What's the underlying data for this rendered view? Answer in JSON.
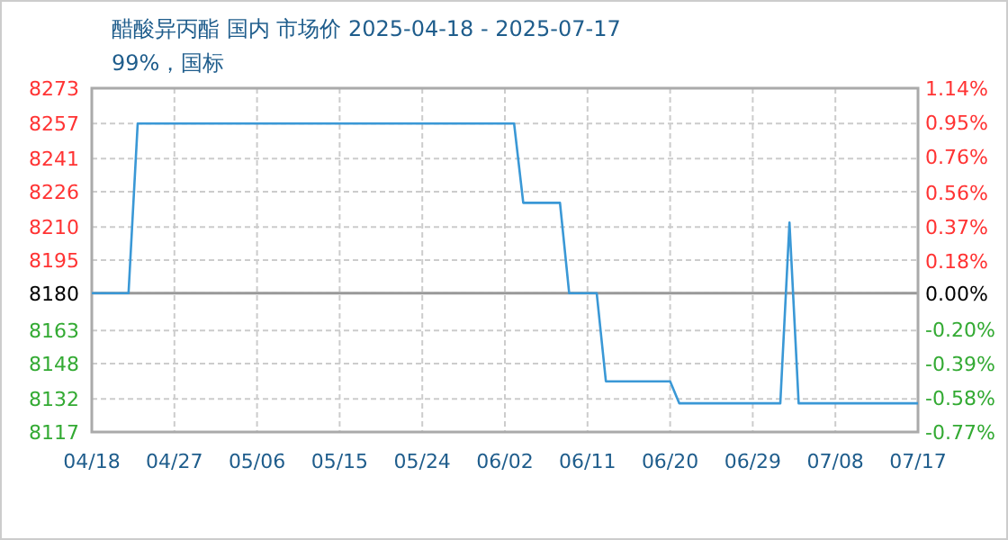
{
  "chart_data": {
    "type": "line",
    "title": "醋酸异丙酯 国内 市场价 2025-04-18 - 2025-07-17",
    "subtitle": "99%，国标",
    "x": [
      "2025-04-18",
      "2025-04-22",
      "2025-04-23",
      "2025-06-03",
      "2025-06-04",
      "2025-06-08",
      "2025-06-09",
      "2025-06-12",
      "2025-06-13",
      "2025-06-20",
      "2025-06-21",
      "2025-07-02",
      "2025-07-03",
      "2025-07-04",
      "2025-07-17"
    ],
    "series": [
      {
        "color": "#3a98d6",
        "values": [
          8180,
          8180,
          8257,
          8257,
          8221,
          8221,
          8180,
          8180,
          8140,
          8140,
          8130,
          8130,
          8212,
          8130,
          8130
        ]
      }
    ],
    "xlim": [
      "2025-04-18",
      "2025-07-17"
    ],
    "xticks": [
      {
        "value": "2025-04-18",
        "label": "04/18"
      },
      {
        "value": "2025-04-27",
        "label": "04/27"
      },
      {
        "value": "2025-05-06",
        "label": "05/06"
      },
      {
        "value": "2025-05-15",
        "label": "05/15"
      },
      {
        "value": "2025-05-24",
        "label": "05/24"
      },
      {
        "value": "2025-06-02",
        "label": "06/02"
      },
      {
        "value": "2025-06-11",
        "label": "06/11"
      },
      {
        "value": "2025-06-20",
        "label": "06/20"
      },
      {
        "value": "2025-06-29",
        "label": "06/29"
      },
      {
        "value": "2025-07-08",
        "label": "07/08"
      },
      {
        "value": "2025-07-17",
        "label": "07/17"
      }
    ],
    "ylim": [
      8117,
      8273
    ],
    "yticks": [
      8117,
      8132,
      8148,
      8163,
      8180,
      8195,
      8210,
      8226,
      8241,
      8257,
      8273
    ],
    "y2lim": [
      -0.77,
      1.14
    ],
    "y2ticks": [
      {
        "value": -0.77,
        "label": "-0.77%"
      },
      {
        "value": -0.58,
        "label": "-0.58%"
      },
      {
        "value": -0.39,
        "label": "-0.39%"
      },
      {
        "value": -0.2,
        "label": "-0.20%"
      },
      {
        "value": 0,
        "label": "0.00%"
      },
      {
        "value": 0.18,
        "label": "0.18%"
      },
      {
        "value": 0.37,
        "label": "0.37%"
      },
      {
        "value": 0.56,
        "label": "0.56%"
      },
      {
        "value": 0.76,
        "label": "0.76%"
      },
      {
        "value": 0.95,
        "label": "0.95%"
      },
      {
        "value": 1.14,
        "label": "1.14%"
      }
    ],
    "ref_lines": [
      {
        "axis": "y",
        "value": 8180,
        "color": "#999999"
      }
    ],
    "grid": true,
    "line_style": "solid",
    "marker": "none"
  }
}
